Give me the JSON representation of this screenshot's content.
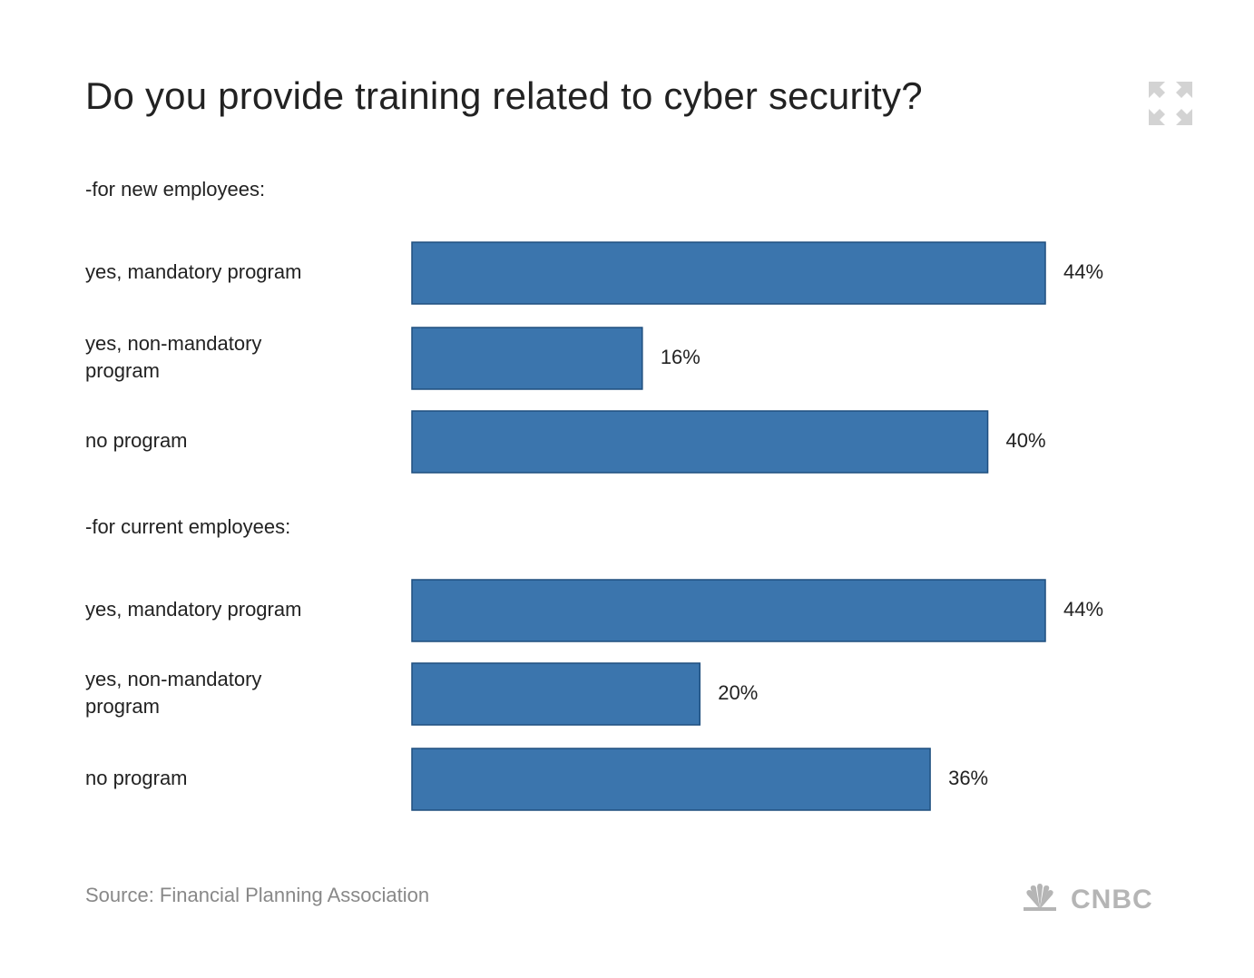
{
  "chart_data": {
    "type": "bar",
    "orientation": "horizontal",
    "title": "Do you provide training related to cyber security?",
    "unit": "%",
    "xlim": [
      0,
      44
    ],
    "grid": false,
    "bar_color": "#3b75ad",
    "bar_stroke": "#1f4f7f",
    "groups": [
      {
        "label": "-for new employees:",
        "bars": [
          {
            "category": "yes, mandatory program",
            "value": 44,
            "label": "44%"
          },
          {
            "category": "yes, non-mandatory program",
            "value": 16,
            "label": "16%"
          },
          {
            "category": "no program",
            "value": 40,
            "label": "40%"
          }
        ]
      },
      {
        "label": "-for current employees:",
        "bars": [
          {
            "category": "yes, mandatory program",
            "value": 44,
            "label": "44%"
          },
          {
            "category": "yes, non-mandatory program",
            "value": 20,
            "label": "20%"
          },
          {
            "category": "no program",
            "value": 36,
            "label": "36%"
          }
        ]
      }
    ]
  },
  "footer": {
    "source": "Source: Financial Planning Association",
    "logo_text": "CNBC"
  },
  "icons": {
    "expand": "expand-icon",
    "logo": "cnbc-peacock-logo"
  }
}
